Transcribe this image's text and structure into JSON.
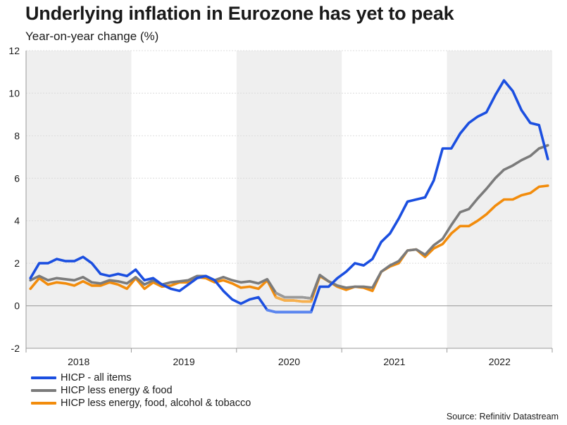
{
  "chart_data": {
    "type": "line",
    "title": "Underlying inflation in Eurozone has yet to peak",
    "subtitle": "Year-on-year change (%)",
    "source": "Source: Refinitiv Datastream",
    "ylim": [
      -2,
      12
    ],
    "yticks": [
      -2,
      0,
      2,
      4,
      6,
      8,
      10,
      12
    ],
    "x_start": "2018-01",
    "years": [
      "2018",
      "2019",
      "2020",
      "2021",
      "2022"
    ],
    "shaded_years": [
      "2018",
      "2020",
      "2022"
    ],
    "gridlines": true,
    "legend_position": "bottom-left",
    "series": [
      {
        "name": "HICP - all items",
        "color": "#1b4fe0",
        "values": [
          1.3,
          2.0,
          2.0,
          2.2,
          2.1,
          2.1,
          2.3,
          2.0,
          1.5,
          1.4,
          1.5,
          1.4,
          1.7,
          1.2,
          1.3,
          1.0,
          0.8,
          0.7,
          1.0,
          1.3,
          1.4,
          1.2,
          0.7,
          0.3,
          0.1,
          0.3,
          0.4,
          -0.2,
          -0.3,
          -0.3,
          -0.3,
          -0.3,
          -0.3,
          0.9,
          0.9,
          1.3,
          1.6,
          2.0,
          1.9,
          2.2,
          3.0,
          3.4,
          4.1,
          4.9,
          5.0,
          5.1,
          5.9,
          7.4,
          7.4,
          8.1,
          8.6,
          8.9,
          9.1,
          9.9,
          10.6,
          10.1,
          9.2,
          8.6,
          8.5,
          6.9
        ],
        "highlight_range": [
          27,
          32
        ],
        "highlight_color": "#5b86ef"
      },
      {
        "name": "HICP less energy & food",
        "color": "#7b7b7b",
        "values": [
          1.2,
          1.4,
          1.2,
          1.3,
          1.25,
          1.2,
          1.35,
          1.1,
          1.05,
          1.2,
          1.15,
          1.05,
          1.35,
          1.0,
          1.2,
          1.0,
          1.1,
          1.15,
          1.2,
          1.4,
          1.4,
          1.2,
          1.35,
          1.2,
          1.1,
          1.15,
          1.05,
          1.25,
          0.6,
          0.4,
          0.4,
          0.4,
          0.35,
          1.45,
          1.15,
          0.95,
          0.85,
          0.9,
          0.9,
          0.85,
          1.6,
          1.9,
          2.1,
          2.6,
          2.65,
          2.4,
          2.85,
          3.15,
          3.8,
          4.4,
          4.55,
          5.05,
          5.5,
          6.0,
          6.4,
          6.6,
          6.85,
          7.05,
          7.4,
          7.55
        ],
        "highlight_range": [
          28,
          32
        ],
        "highlight_color": "#9a9a9a"
      },
      {
        "name": "HICP less energy, food, alcohol & tobacco",
        "color": "#f28c0c",
        "values": [
          0.8,
          1.3,
          1.0,
          1.1,
          1.05,
          0.95,
          1.15,
          0.95,
          0.95,
          1.1,
          1.0,
          0.8,
          1.3,
          0.8,
          1.1,
          0.9,
          0.95,
          1.1,
          1.1,
          1.35,
          1.3,
          1.1,
          1.2,
          1.05,
          0.85,
          0.9,
          0.8,
          1.2,
          0.4,
          0.25,
          0.25,
          0.2,
          0.2,
          1.4,
          1.15,
          0.9,
          0.75,
          0.9,
          0.85,
          0.7,
          1.6,
          1.85,
          2.0,
          2.6,
          2.65,
          2.3,
          2.7,
          2.9,
          3.4,
          3.75,
          3.75,
          4.0,
          4.3,
          4.7,
          5.0,
          5.0,
          5.2,
          5.3,
          5.6,
          5.65
        ],
        "highlight_range": [
          28,
          32
        ],
        "highlight_color": "#f6b04e"
      }
    ]
  }
}
